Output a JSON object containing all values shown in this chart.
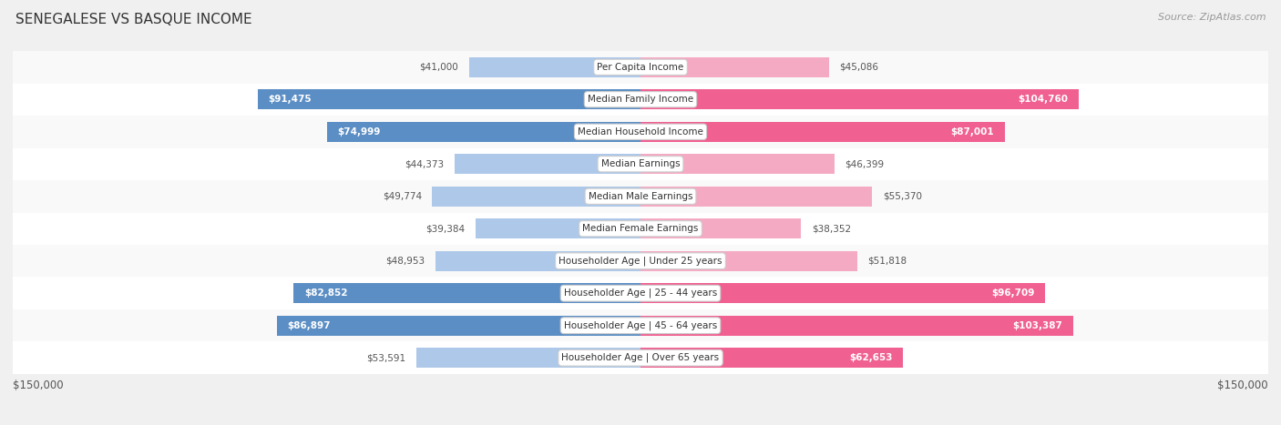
{
  "title": "SENEGALESE VS BASQUE INCOME",
  "source": "Source: ZipAtlas.com",
  "categories": [
    "Per Capita Income",
    "Median Family Income",
    "Median Household Income",
    "Median Earnings",
    "Median Male Earnings",
    "Median Female Earnings",
    "Householder Age | Under 25 years",
    "Householder Age | 25 - 44 years",
    "Householder Age | 45 - 64 years",
    "Householder Age | Over 65 years"
  ],
  "senegalese_values": [
    41000,
    91475,
    74999,
    44373,
    49774,
    39384,
    48953,
    82852,
    86897,
    53591
  ],
  "basque_values": [
    45086,
    104760,
    87001,
    46399,
    55370,
    38352,
    51818,
    96709,
    103387,
    62653
  ],
  "senegalese_labels": [
    "$41,000",
    "$91,475",
    "$74,999",
    "$44,373",
    "$49,774",
    "$39,384",
    "$48,953",
    "$82,852",
    "$86,897",
    "$53,591"
  ],
  "basque_labels": [
    "$45,086",
    "$104,760",
    "$87,001",
    "$46,399",
    "$55,370",
    "$38,352",
    "$51,818",
    "$96,709",
    "$103,387",
    "$62,653"
  ],
  "max_value": 150000,
  "color_senegalese_light": "#adc8e8",
  "color_senegalese_dark": "#5b8ec4",
  "color_basque_light": "#f5aac4",
  "color_basque_dark": "#f06090",
  "background_color": "#f0f0f0",
  "row_bg_even": "#f9f9f9",
  "row_bg_odd": "#ffffff",
  "sen_dark_threshold": 60000,
  "bas_dark_threshold": 60000,
  "bottom_label_left": "$150,000",
  "bottom_label_right": "$150,000"
}
